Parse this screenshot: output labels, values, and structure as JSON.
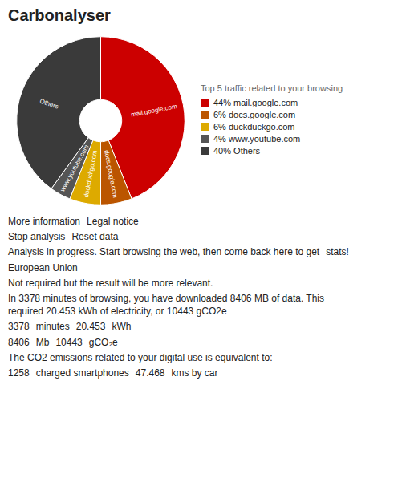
{
  "chart_data": {
    "type": "pie",
    "title": "Carbonalyser",
    "subtitle": "Top 5 traffic related to your browsing",
    "categories": [
      "mail.google.com",
      "docs.google.com",
      "duckduckgo.com",
      "www.youtube.com",
      "Others"
    ],
    "values": [
      44,
      6,
      6,
      4,
      40
    ],
    "value_labels": [
      "44% mail.google.com",
      "6% docs.google.com",
      "6% duckduckgo.com",
      "4% www.youtube.com",
      "40% Others"
    ],
    "colors": [
      "#cc0000",
      "#bb5500",
      "#ddaa00",
      "#555555",
      "#3a3a3a"
    ],
    "legend": "right",
    "annotations": [
      [
        "More information",
        "Legal notice"
      ],
      [
        "Stop analysis",
        "Reset data"
      ],
      [
        "Analysis in progress. Start browsing the web, then come back here to get",
        "stats!"
      ],
      [
        "European Union"
      ],
      [
        "Not required but the result will be more relevant."
      ],
      [
        "In 3378 minutes of browsing, you have downloaded 8406 MB of data. This",
        "required 20.453 kWh of electricity, or 10443 gCO2e"
      ],
      [
        "3378",
        "minutes",
        "20.453",
        "kWh"
      ],
      [
        "8406",
        "Mb",
        "10443",
        "gCO₂e"
      ],
      [
        "The CO2 emissions related to your digital use is equivalent to:"
      ],
      [
        "1258",
        "charged smartphones",
        "47.468",
        "kms by car"
      ]
    ]
  }
}
